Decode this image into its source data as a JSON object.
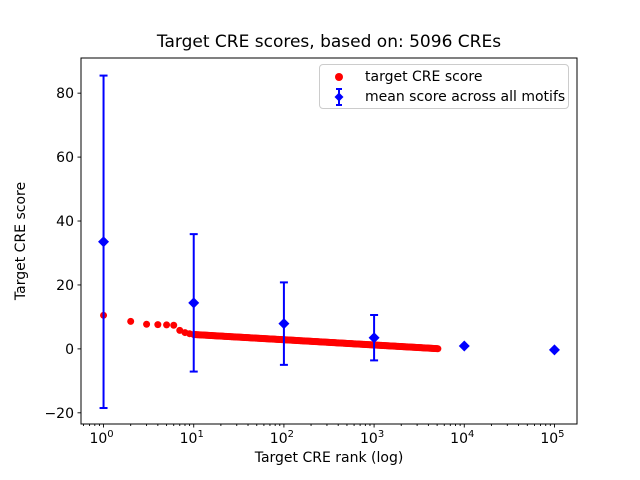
{
  "title": "Target CRE scores, based on: 5096 CREs",
  "colors": {
    "target_series": "#ff0000",
    "mean_series": "#0000ff",
    "axis": "#000000",
    "legend_border": "#cccccc",
    "background": "#ffffff"
  },
  "chart_data": {
    "type": "scatter",
    "title": "Target CRE scores, based on: 5096 CREs",
    "xlabel": "Target CRE rank (log)",
    "ylabel": "Target CRE score",
    "x_scale": "log",
    "xlim_log10": [
      -0.25,
      5.25
    ],
    "ylim": [
      -23.5,
      91
    ],
    "x_major_tick_exponents": [
      0,
      1,
      2,
      3,
      4,
      5
    ],
    "y_ticks": [
      -20,
      0,
      20,
      40,
      60,
      80
    ],
    "grid": false,
    "n_cres": 5096,
    "series": [
      {
        "name": "target CRE score",
        "marker": "circle",
        "color": "#ff0000",
        "description": "dense monotonically decreasing band of 5096 points; anchor points sampled from the plot",
        "anchor_points": [
          [
            1,
            10.5
          ],
          [
            2,
            8.6
          ],
          [
            3,
            7.7
          ],
          [
            4,
            7.6
          ],
          [
            5,
            7.5
          ],
          [
            6,
            7.4
          ],
          [
            7,
            5.8
          ],
          [
            8,
            5.1
          ],
          [
            9,
            4.75
          ],
          [
            10,
            4.5
          ],
          [
            20,
            4.0
          ],
          [
            50,
            3.35
          ],
          [
            100,
            2.86
          ],
          [
            200,
            2.37
          ],
          [
            500,
            1.71
          ],
          [
            1000,
            1.22
          ],
          [
            2000,
            0.73
          ],
          [
            3000,
            0.44
          ],
          [
            4000,
            0.24
          ],
          [
            5096,
            0.06
          ]
        ],
        "max_rank": 5096
      },
      {
        "name": "mean score across all motifs",
        "marker": "diamond",
        "color": "#0000ff",
        "points": [
          {
            "x": 1,
            "y": 33.5,
            "yerr": 52.0
          },
          {
            "x": 10,
            "y": 14.4,
            "yerr": 21.5
          },
          {
            "x": 100,
            "y": 7.9,
            "yerr": 12.9
          },
          {
            "x": 1000,
            "y": 3.5,
            "yerr": 7.1
          },
          {
            "x": 10000,
            "y": 0.9,
            "yerr": 0
          },
          {
            "x": 100000,
            "y": -0.3,
            "yerr": 0
          }
        ]
      }
    ],
    "legend": {
      "position": "upper right",
      "entries": [
        {
          "label": "target CRE score"
        },
        {
          "label": "mean score across all motifs"
        }
      ]
    }
  }
}
